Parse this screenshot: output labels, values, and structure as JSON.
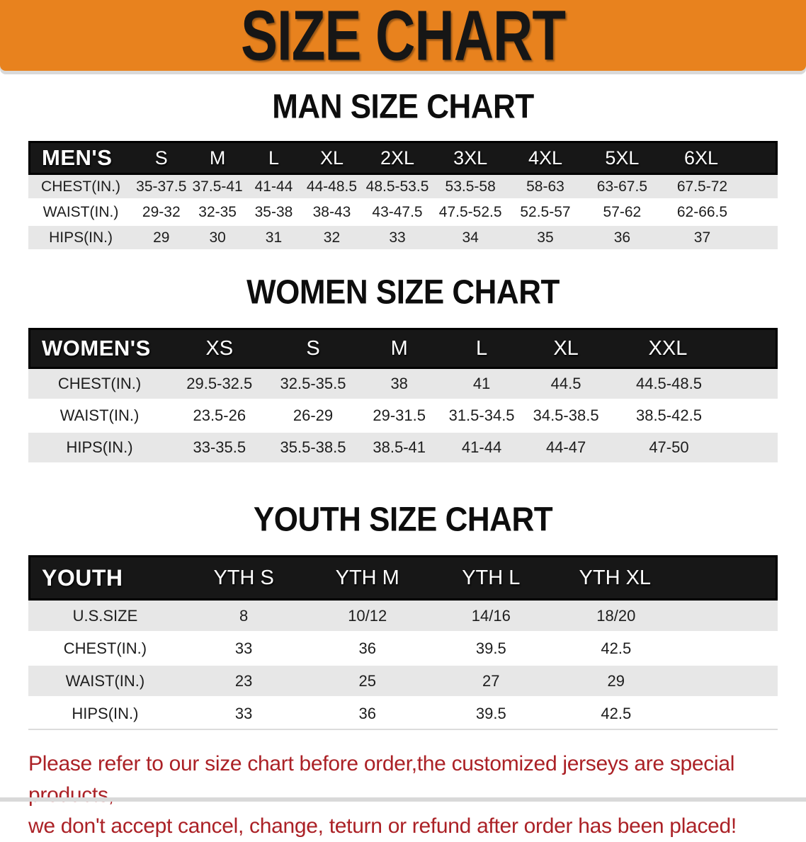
{
  "banner": {
    "title": "SIZE CHART",
    "bg_color": "#E8821E",
    "text_color": "#161616"
  },
  "sections": {
    "men": {
      "heading": "MAN SIZE CHART",
      "table": {
        "header": [
          "MEN'S",
          "S",
          "M",
          "L",
          "XL",
          "2XL",
          "3XL",
          "4XL",
          "5XL",
          "6XL"
        ],
        "rows": [
          [
            "CHEST(IN.)",
            "35-37.5",
            "37.5-41",
            "41-44",
            "44-48.5",
            "48.5-53.5",
            "53.5-58",
            "58-63",
            "63-67.5",
            "67.5-72"
          ],
          [
            "WAIST(IN.)",
            "29-32",
            "32-35",
            "35-38",
            "38-43",
            "43-47.5",
            "47.5-52.5",
            "52.5-57",
            "57-62",
            "62-66.5"
          ],
          [
            "HIPS(IN.)",
            "29",
            "30",
            "31",
            "32",
            "33",
            "34",
            "35",
            "36",
            "37"
          ]
        ]
      }
    },
    "women": {
      "heading": "WOMEN SIZE CHART",
      "table": {
        "header": [
          "WOMEN'S",
          "XS",
          "S",
          "M",
          "L",
          "XL",
          "XXL"
        ],
        "rows": [
          [
            "CHEST(IN.)",
            "29.5-32.5",
            "32.5-35.5",
            "38",
            "41",
            "44.5",
            "44.5-48.5"
          ],
          [
            "WAIST(IN.)",
            "23.5-26",
            "26-29",
            "29-31.5",
            "31.5-34.5",
            "34.5-38.5",
            "38.5-42.5"
          ],
          [
            "HIPS(IN.)",
            "33-35.5",
            "35.5-38.5",
            "38.5-41",
            "41-44",
            "44-47",
            "47-50"
          ]
        ]
      }
    },
    "youth": {
      "heading": "YOUTH SIZE CHART",
      "table": {
        "header": [
          "YOUTH",
          "YTH S",
          "YTH M",
          "YTH L",
          "YTH XL"
        ],
        "rows": [
          [
            "U.S.SIZE",
            "8",
            "10/12",
            "14/16",
            "18/20"
          ],
          [
            "CHEST(IN.)",
            "33",
            "36",
            "39.5",
            "42.5"
          ],
          [
            "WAIST(IN.)",
            "23",
            "25",
            "27",
            "29"
          ],
          [
            "HIPS(IN.)",
            "33",
            "36",
            "39.5",
            "42.5"
          ]
        ]
      }
    }
  },
  "disclaimer": {
    "line1": "Please refer to our size chart before order,the customized jerseys are special products,",
    "line2": "we don't accept cancel, change, teturn or refund after order has been placed!",
    "color": "#AB2126"
  }
}
